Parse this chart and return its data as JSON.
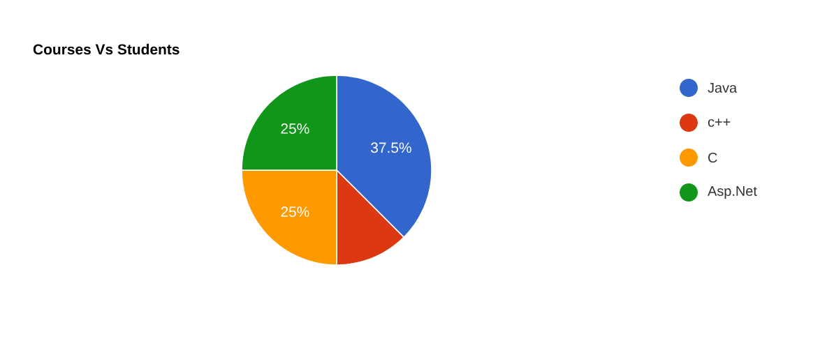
{
  "chart_data": {
    "type": "pie",
    "title": "Courses Vs Students",
    "categories": [
      "Java",
      "c++",
      "C",
      "Asp.Net"
    ],
    "values": [
      37.5,
      12.5,
      25,
      25
    ],
    "value_labels": [
      "37.5%",
      null,
      "25%",
      "25%"
    ],
    "colors": [
      "#3366cc",
      "#dc3912",
      "#ff9900",
      "#109618"
    ],
    "legend": "right"
  }
}
